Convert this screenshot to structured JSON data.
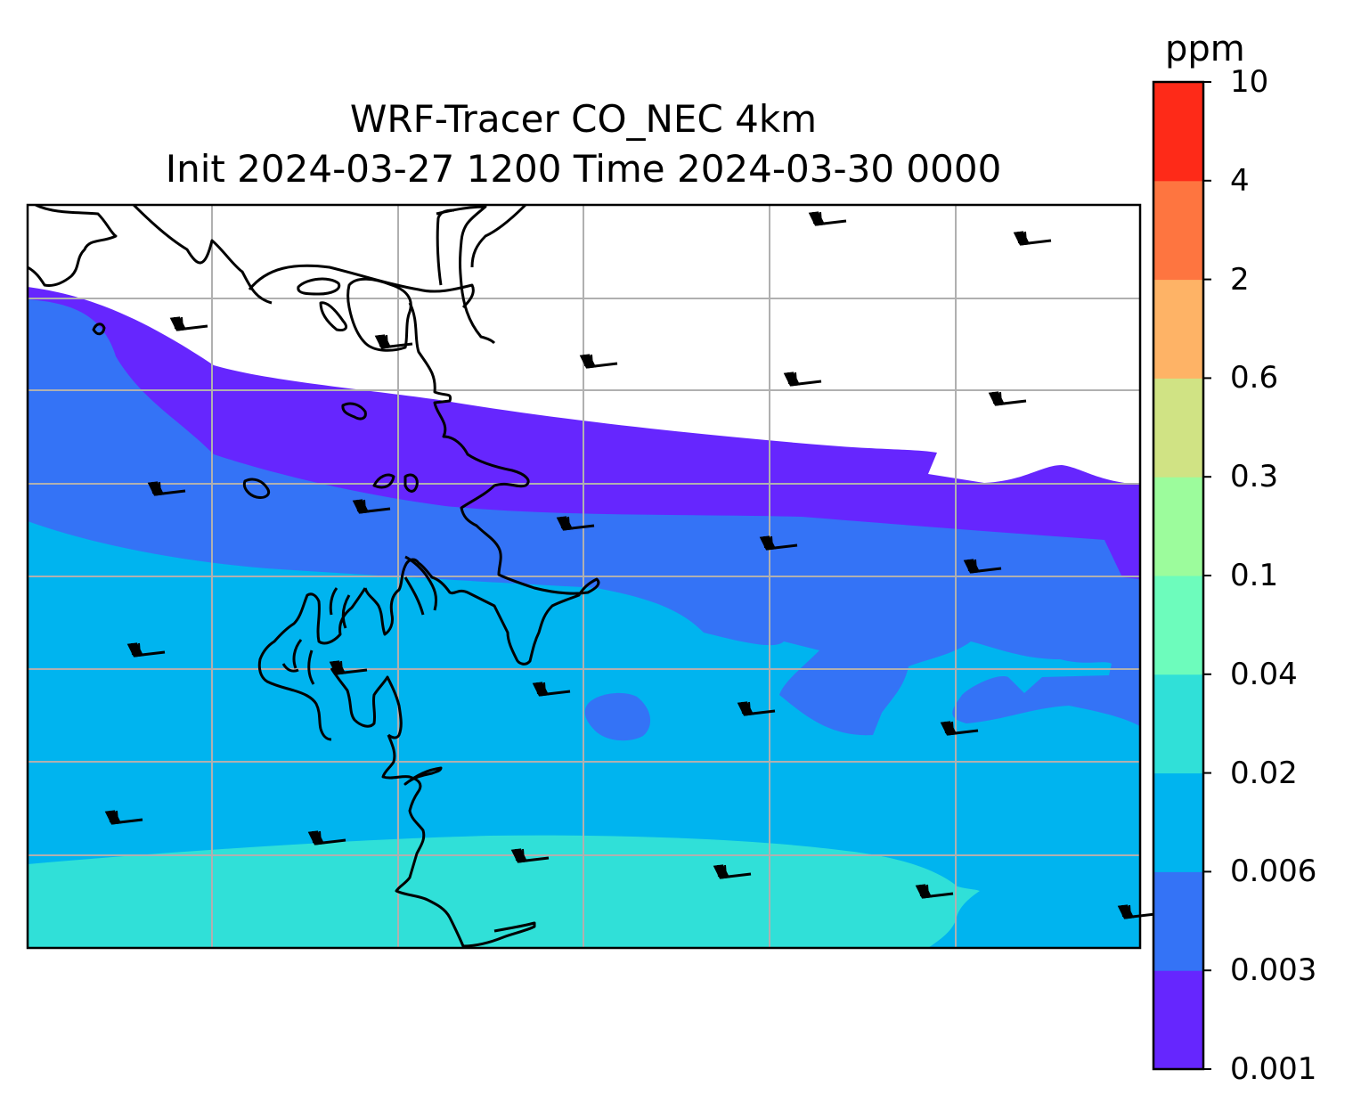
{
  "title": {
    "line1": "WRF-Tracer CO_NEC 4km",
    "line2": "Init 2024-03-27 1200 Time 2024-03-30 0000"
  },
  "colorbar": {
    "unit": "ppm",
    "levels": [
      "0.001",
      "0.003",
      "0.006",
      "0.02",
      "0.04",
      "0.1",
      "0.3",
      "0.6",
      "2",
      "4",
      "10"
    ],
    "colors": [
      "#6626fe",
      "#3473f6",
      "#00b4ef",
      "#30e0d8",
      "#6dfcbc",
      "#9cfc9c",
      "#d0e384",
      "#feb366",
      "#fe7540",
      "#fe2a18"
    ]
  },
  "map": {
    "field_colors": {
      "band_0.001_0.003": "#6626fe",
      "band_0.003_0.006": "#3473f6",
      "band_0.006_0.02": "#00b4ef",
      "band_0.02_0.04": "#30e0d8"
    },
    "gridline_color": "#b0b0b0",
    "coastline_color": "#000000",
    "wind_barbs": "black barbs, wind from the west"
  }
}
